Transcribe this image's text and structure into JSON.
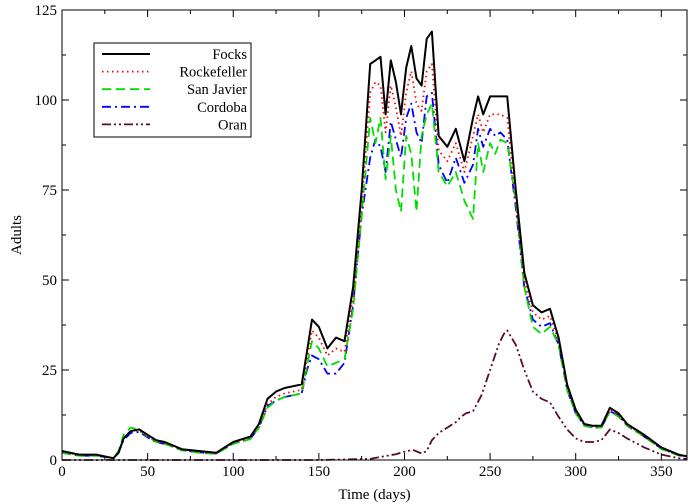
{
  "chart_data": {
    "type": "line",
    "title": "",
    "xlabel": "Time (days)",
    "ylabel": "Adults",
    "xlim": [
      0,
      365
    ],
    "ylim": [
      0,
      125
    ],
    "xticks": [
      0,
      50,
      100,
      150,
      200,
      250,
      300,
      350
    ],
    "yticks": [
      0,
      25,
      50,
      75,
      100,
      125
    ],
    "grid": false,
    "legend_position": "top-left",
    "series": [
      {
        "name": "Focks",
        "color": "#000000",
        "dash": "solid",
        "x": [
          0,
          10,
          20,
          30,
          33,
          36,
          40,
          45,
          50,
          55,
          60,
          70,
          80,
          90,
          100,
          110,
          115,
          120,
          125,
          130,
          135,
          140,
          143,
          146,
          150,
          155,
          160,
          165,
          170,
          175,
          180,
          183,
          186,
          189,
          192,
          195,
          198,
          201,
          204,
          207,
          210,
          213,
          216,
          220,
          225,
          230,
          235,
          240,
          243,
          246,
          250,
          253,
          256,
          260,
          265,
          270,
          275,
          280,
          285,
          290,
          295,
          300,
          305,
          310,
          315,
          320,
          325,
          330,
          340,
          350,
          360,
          365
        ],
        "y": [
          2.5,
          1.5,
          1.5,
          0.5,
          2,
          6,
          8,
          8.5,
          7,
          5.5,
          5,
          3,
          2.5,
          2,
          5,
          6.5,
          10,
          17,
          19,
          20,
          20.5,
          21,
          30,
          39,
          37,
          31,
          34,
          33,
          48,
          75,
          110,
          111,
          112,
          96,
          111,
          105,
          96,
          109,
          115,
          106,
          104,
          117,
          119,
          90,
          87,
          92,
          83,
          95,
          101,
          96,
          101,
          101,
          101,
          101,
          75,
          52,
          43,
          41,
          42,
          34,
          21,
          14,
          10,
          9.5,
          9.5,
          14.5,
          13,
          10,
          7,
          3.5,
          1.5,
          1
        ]
      },
      {
        "name": "Rockefeller",
        "color": "#ff0000",
        "dash": "dotted",
        "x": [
          0,
          10,
          20,
          30,
          33,
          36,
          40,
          45,
          50,
          55,
          60,
          70,
          80,
          90,
          100,
          110,
          115,
          120,
          125,
          130,
          135,
          140,
          143,
          146,
          150,
          155,
          160,
          165,
          170,
          175,
          180,
          183,
          186,
          189,
          192,
          195,
          198,
          201,
          204,
          207,
          210,
          213,
          216,
          220,
          225,
          230,
          235,
          240,
          243,
          246,
          250,
          253,
          256,
          260,
          265,
          270,
          275,
          280,
          285,
          290,
          295,
          300,
          305,
          310,
          315,
          320,
          325,
          330,
          340,
          350,
          360,
          365
        ],
        "y": [
          2.3,
          1.4,
          1.4,
          0.5,
          2,
          6,
          8,
          8.2,
          6.7,
          5.2,
          4.8,
          2.9,
          2.3,
          1.9,
          4.8,
          6.2,
          9.5,
          15.5,
          17.5,
          18.5,
          19,
          19.5,
          28,
          36,
          34,
          29,
          31,
          30,
          45,
          71,
          102,
          105,
          104,
          91,
          104,
          98,
          90,
          102,
          108,
          99,
          97,
          108,
          110,
          86,
          83,
          88,
          80,
          90,
          96,
          91,
          96,
          96,
          96,
          95,
          72,
          50,
          41,
          39,
          40,
          33,
          20.5,
          13.5,
          9.7,
          9.3,
          9.3,
          14,
          12.5,
          9.7,
          6.7,
          3.3,
          1.4,
          1
        ]
      },
      {
        "name": "San Javier",
        "color": "#00dd00",
        "dash": "dashed",
        "x": [
          0,
          10,
          20,
          30,
          33,
          36,
          40,
          45,
          50,
          55,
          60,
          70,
          80,
          90,
          100,
          110,
          115,
          120,
          125,
          130,
          135,
          140,
          143,
          146,
          150,
          155,
          160,
          165,
          170,
          175,
          180,
          183,
          186,
          189,
          192,
          195,
          198,
          201,
          204,
          207,
          210,
          213,
          216,
          220,
          225,
          230,
          235,
          240,
          243,
          246,
          250,
          253,
          256,
          260,
          265,
          270,
          275,
          280,
          285,
          290,
          295,
          300,
          305,
          310,
          315,
          320,
          325,
          330,
          340,
          350,
          360,
          365
        ],
        "y": [
          2,
          1.2,
          1.2,
          0.5,
          2.5,
          7,
          9,
          8.5,
          6.5,
          5,
          4.5,
          2.7,
          2,
          1.7,
          4.5,
          5.8,
          9,
          14.5,
          16.5,
          17.5,
          18,
          18.5,
          26,
          33,
          31,
          26,
          27,
          28,
          42,
          68,
          95,
          88,
          95,
          78,
          90,
          75,
          69,
          90,
          85,
          69,
          90,
          96,
          99,
          80,
          76,
          80,
          72,
          67,
          88,
          80,
          88,
          85,
          89,
          88,
          72,
          48,
          37,
          35,
          37,
          32,
          19.5,
          13,
          9.5,
          9,
          9,
          13.5,
          12,
          9.5,
          6.5,
          3,
          1.3,
          1
        ]
      },
      {
        "name": "Cordoba",
        "color": "#0000ff",
        "dash": "dashdot",
        "x": [
          0,
          10,
          20,
          30,
          33,
          36,
          40,
          45,
          50,
          55,
          60,
          70,
          80,
          90,
          100,
          110,
          115,
          120,
          125,
          130,
          135,
          140,
          143,
          146,
          150,
          155,
          160,
          165,
          170,
          175,
          180,
          183,
          186,
          189,
          192,
          195,
          198,
          201,
          204,
          207,
          210,
          213,
          216,
          220,
          225,
          230,
          235,
          240,
          243,
          246,
          250,
          253,
          256,
          260,
          265,
          270,
          275,
          280,
          285,
          290,
          295,
          300,
          305,
          310,
          315,
          320,
          325,
          330,
          340,
          350,
          360,
          365
        ],
        "y": [
          2,
          1.2,
          1.2,
          0.5,
          2,
          5.5,
          7.5,
          7.8,
          6.3,
          4.9,
          4.5,
          2.7,
          2.1,
          1.8,
          4.5,
          5.9,
          9,
          15,
          16.5,
          17.5,
          18,
          18.5,
          25,
          29,
          28,
          24,
          24,
          27,
          43,
          68,
          84,
          89,
          87,
          80,
          94,
          89,
          84,
          95,
          99,
          91,
          88,
          101,
          102,
          82,
          77,
          84,
          77,
          82,
          92,
          87,
          92,
          90,
          91,
          89,
          70,
          48,
          39,
          37,
          38,
          32,
          19.5,
          13,
          9.5,
          9,
          9,
          13.5,
          12.5,
          9.5,
          6.5,
          3.2,
          1.3,
          1
        ]
      },
      {
        "name": "Oran",
        "color": "#5a0a32",
        "dash": "dashdotdot",
        "x": [
          0,
          100,
          150,
          180,
          190,
          195,
          200,
          205,
          210,
          213,
          216,
          220,
          225,
          230,
          233,
          236,
          240,
          245,
          250,
          255,
          258,
          260,
          265,
          270,
          275,
          280,
          285,
          290,
          295,
          300,
          305,
          310,
          315,
          320,
          325,
          330,
          340,
          350,
          360,
          365
        ],
        "y": [
          0,
          0,
          0,
          0.3,
          1.2,
          1.6,
          2.3,
          2.8,
          1.8,
          2.5,
          5.5,
          7.5,
          9,
          10.5,
          12,
          13,
          13.5,
          18,
          25,
          32,
          35,
          36,
          32,
          25,
          19,
          17,
          16,
          12,
          8.5,
          6,
          5,
          5,
          5.5,
          8.5,
          7.5,
          6,
          3.5,
          1.5,
          0.5,
          0.3
        ]
      }
    ]
  }
}
